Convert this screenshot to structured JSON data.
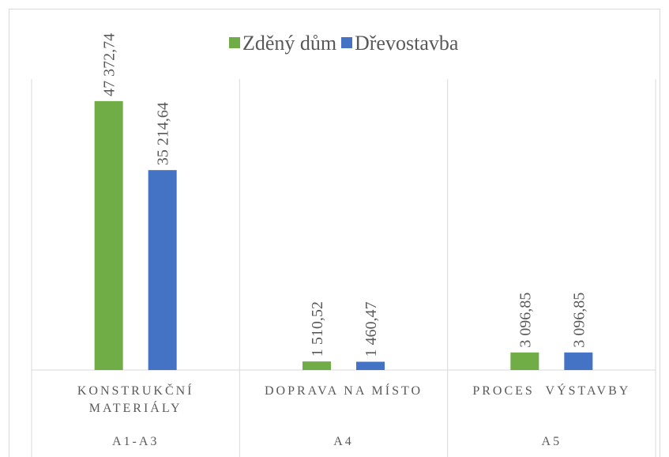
{
  "chart_data": {
    "type": "bar",
    "categories": [
      "KONSTRUKČNÍ MATERIÁLY",
      "DOPRAVA NA MÍSTO",
      "PROCES  VÝSTAVBY"
    ],
    "groups": [
      "A1-A3",
      "A4",
      "A5"
    ],
    "series": [
      {
        "name": "Zděný dům",
        "color": "#70ad47",
        "values": [
          47372.74,
          1510.52,
          3096.85
        ],
        "value_labels": [
          "47 372,74",
          "1 510,52",
          "3 096,85"
        ]
      },
      {
        "name": "Dřevostavba",
        "color": "#4472c4",
        "values": [
          35214.64,
          1460.47,
          3096.85
        ],
        "value_labels": [
          "35 214,64",
          "1 460,47",
          "3 096,85"
        ]
      }
    ],
    "ylim": [
      0,
      50000
    ],
    "legend": "top"
  }
}
